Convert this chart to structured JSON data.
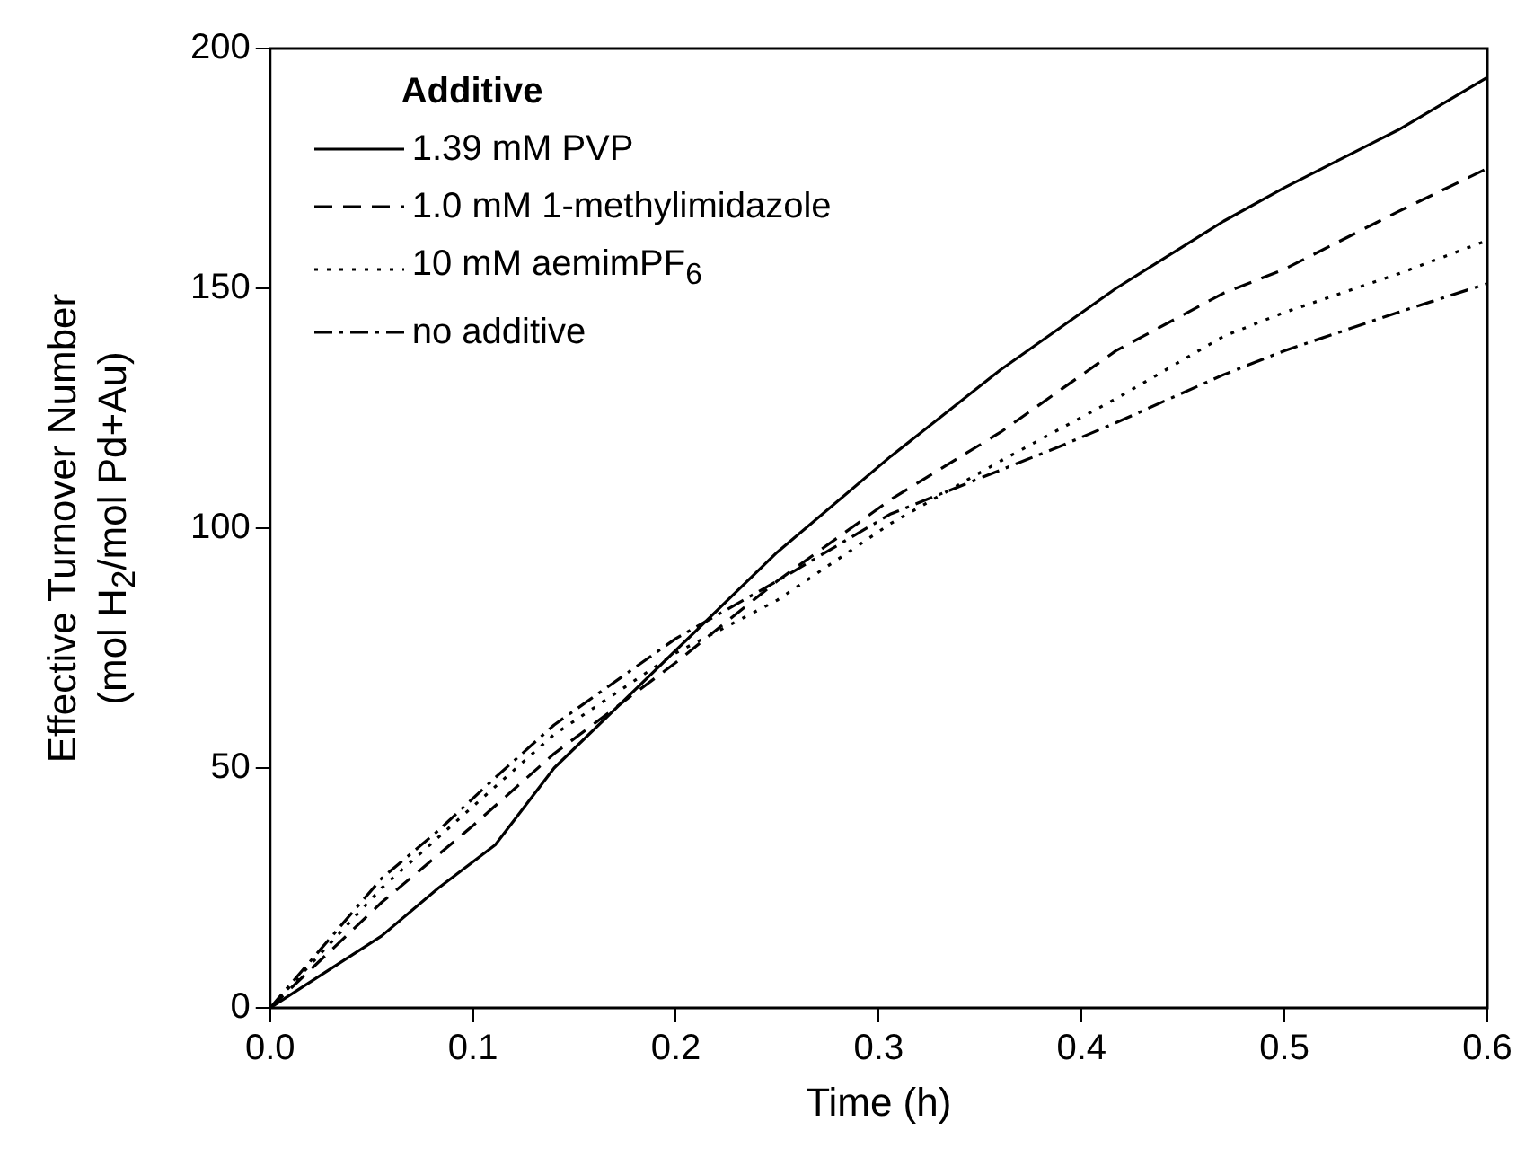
{
  "chart_data": {
    "type": "line",
    "xlabel": "Time (h)",
    "ylabel": "Effective Turnover Number (mol H$_{2}$/mol Pd+Au)",
    "legend_title": "Additive",
    "legend": "top left",
    "grid": false,
    "marker": "none",
    "xlim": [
      0,
      0.6
    ],
    "xticks": [
      {
        "value": 0,
        "label": "0.0"
      },
      {
        "value": 0.1,
        "label": "0.1"
      },
      {
        "value": 0.2,
        "label": "0.2"
      },
      {
        "value": 0.3,
        "label": "0.3"
      },
      {
        "value": 0.4,
        "label": "0.4"
      },
      {
        "value": 0.5,
        "label": "0.5"
      },
      {
        "value": 0.6,
        "label": "0.6"
      }
    ],
    "ylim": [
      0,
      200
    ],
    "yticks": [
      0,
      50,
      100,
      150,
      200
    ],
    "series": [
      {
        "name": "1.39 mM PVP",
        "color": "#000000",
        "line_style": "solid",
        "x": [
          0,
          0.055,
          0.083,
          0.111,
          0.14,
          0.25,
          0.306,
          0.36,
          0.417,
          0.47,
          0.5,
          0.556,
          0.6
        ],
        "values": [
          0,
          15,
          25,
          34,
          50,
          95,
          115,
          133,
          150,
          164,
          171,
          183,
          194
        ]
      },
      {
        "name": "1.0 mM 1-methylimidazole",
        "color": "#000000",
        "line_style": "dashed",
        "x": [
          0,
          0.055,
          0.1,
          0.14,
          0.2,
          0.25,
          0.306,
          0.36,
          0.417,
          0.47,
          0.5,
          0.556,
          0.6
        ],
        "values": [
          0,
          22,
          38,
          53,
          72,
          89,
          106,
          120,
          137,
          149,
          154,
          166,
          175
        ]
      },
      {
        "name": "10 mM aemimPF$_{6}$",
        "color": "#000000",
        "line_style": "dotted",
        "x": [
          0,
          0.055,
          0.1,
          0.14,
          0.2,
          0.25,
          0.306,
          0.36,
          0.417,
          0.47,
          0.5,
          0.556,
          0.6
        ],
        "values": [
          0,
          25,
          42,
          57,
          74,
          85,
          101,
          114,
          127,
          140,
          145,
          153,
          160
        ]
      },
      {
        "name": "no additive",
        "color": "#000000",
        "line_style": "dashdot",
        "x": [
          0,
          0.055,
          0.083,
          0.111,
          0.14,
          0.2,
          0.25,
          0.306,
          0.389,
          0.417,
          0.47,
          0.5,
          0.556,
          0.6
        ],
        "values": [
          0,
          27,
          37,
          48,
          59,
          77,
          89,
          103,
          117,
          122,
          132,
          137,
          145,
          151
        ]
      }
    ]
  }
}
